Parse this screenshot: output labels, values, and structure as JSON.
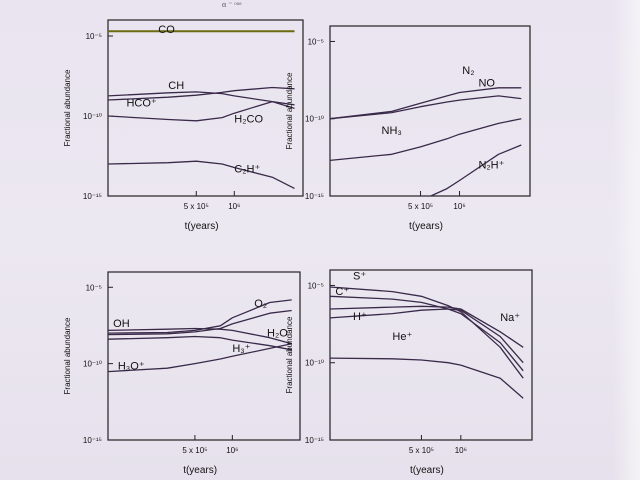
{
  "page": {
    "top_fragment": "α ⁻ ᵒᵘᵉ"
  },
  "chart_data": [
    {
      "type": "line",
      "xlabel": "t(years)",
      "ylabel": "Fractional abundance",
      "x_scale": "log",
      "y_scale": "log",
      "xlim": [
        100000,
        3500000
      ],
      "ylim": [
        1e-15,
        0.0001
      ],
      "yticks": [
        {
          "value": 1e-05,
          "label": "10⁻⁵"
        },
        {
          "value": 1e-10,
          "label": "10⁻¹⁰"
        },
        {
          "value": 1e-15,
          "label": "10⁻¹⁵"
        }
      ],
      "xticks": [
        {
          "value": 500000,
          "label": "5 x 10⁵"
        },
        {
          "value": 1000000,
          "label": "10⁶"
        }
      ],
      "series": [
        {
          "name": "CO",
          "x": [
            100000,
            500000,
            1000000,
            3000000
          ],
          "y": [
            2e-05,
            2e-05,
            2e-05,
            2e-05
          ]
        },
        {
          "name": "CH",
          "x": [
            100000,
            300000,
            500000,
            800000,
            1000000,
            2000000,
            3000000
          ],
          "y": [
            1.8e-09,
            2.8e-09,
            3.2e-09,
            2.5e-09,
            1.8e-09,
            8e-10,
            3e-10
          ]
        },
        {
          "name": "HCO⁺",
          "x": [
            100000,
            300000,
            500000,
            800000,
            1000000,
            2000000,
            3000000
          ],
          "y": [
            1e-09,
            1.5e-09,
            2e-09,
            3e-09,
            3.8e-09,
            6e-09,
            5e-09
          ]
        },
        {
          "name": "H₂CO",
          "x": [
            100000,
            300000,
            500000,
            800000,
            1000000,
            2000000,
            3000000
          ],
          "y": [
            1e-10,
            6e-11,
            5e-11,
            8e-11,
            1.5e-10,
            8e-10,
            5e-10
          ]
        },
        {
          "name": "C₂H⁺",
          "x": [
            100000,
            300000,
            500000,
            800000,
            1000000,
            2000000,
            3000000
          ],
          "y": [
            1e-13,
            1.2e-13,
            1.5e-13,
            1e-13,
            6e-14,
            1.5e-14,
            3e-15
          ]
        }
      ]
    },
    {
      "type": "line",
      "xlabel": "t(years)",
      "ylabel": "Fractional abundance",
      "x_scale": "log",
      "y_scale": "log",
      "xlim": [
        100000,
        3500000
      ],
      "ylim": [
        1e-15,
        0.0001
      ],
      "yticks": [
        {
          "value": 1e-05,
          "label": "10⁻⁵"
        },
        {
          "value": 1e-10,
          "label": "10⁻¹⁰"
        },
        {
          "value": 1e-15,
          "label": "10⁻¹⁵"
        }
      ],
      "xticks": [
        {
          "value": 500000,
          "label": "5 x 10⁵"
        },
        {
          "value": 1000000,
          "label": "10⁶"
        }
      ],
      "series": [
        {
          "name": "N₂",
          "x": [
            100000,
            300000,
            500000,
            800000,
            1000000,
            2000000,
            3000000
          ],
          "y": [
            1e-10,
            3e-10,
            1e-09,
            3e-09,
            5e-09,
            1e-08,
            1e-08
          ]
        },
        {
          "name": "NO",
          "x": [
            100000,
            300000,
            500000,
            800000,
            1000000,
            2000000,
            3000000
          ],
          "y": [
            1e-10,
            2.5e-10,
            6e-10,
            1.2e-09,
            1.6e-09,
            3e-09,
            2e-09
          ]
        },
        {
          "name": "NH₃",
          "x": [
            100000,
            300000,
            500000,
            800000,
            1000000,
            2000000,
            3000000
          ],
          "y": [
            2e-13,
            5e-13,
            1.5e-12,
            5e-12,
            1e-11,
            5e-11,
            1e-10
          ]
        },
        {
          "name": "N₂H⁺",
          "x": [
            600000,
            800000,
            1000000,
            2000000,
            3000000
          ],
          "y": [
            1e-15,
            3e-15,
            1e-14,
            5e-13,
            2e-12
          ]
        }
      ]
    },
    {
      "type": "line",
      "xlabel": "t(years)",
      "ylabel": "Fractional abundance",
      "x_scale": "log",
      "y_scale": "log",
      "xlim": [
        100000,
        3500000
      ],
      "ylim": [
        1e-15,
        0.0001
      ],
      "yticks": [
        {
          "value": 1e-05,
          "label": "10⁻⁵"
        },
        {
          "value": 1e-10,
          "label": "10⁻¹⁰"
        },
        {
          "value": 1e-15,
          "label": "10⁻¹⁵"
        }
      ],
      "xticks": [
        {
          "value": 500000,
          "label": "5 x 10⁵"
        },
        {
          "value": 1000000,
          "label": "10⁶"
        }
      ],
      "series": [
        {
          "name": "O₂",
          "x": [
            100000,
            300000,
            500000,
            800000,
            1000000,
            2000000,
            3000000
          ],
          "y": [
            1e-08,
            1.1e-08,
            1.5e-08,
            3e-08,
            1e-07,
            1e-06,
            1.5e-06
          ]
        },
        {
          "name": "H₂O",
          "x": [
            100000,
            300000,
            500000,
            800000,
            1000000,
            2000000,
            3000000
          ],
          "y": [
            8e-09,
            9e-09,
            1.2e-08,
            2e-08,
            4e-08,
            2e-07,
            3e-07
          ]
        },
        {
          "name": "OH",
          "x": [
            100000,
            300000,
            500000,
            800000,
            1000000,
            2000000,
            3000000
          ],
          "y": [
            1.5e-08,
            1.8e-08,
            2e-08,
            1.8e-08,
            1.5e-08,
            5e-09,
            2e-09
          ]
        },
        {
          "name": "H₃⁺",
          "x": [
            100000,
            300000,
            500000,
            800000,
            1000000,
            2000000,
            3000000
          ],
          "y": [
            4e-09,
            5e-09,
            6e-09,
            5e-09,
            3.5e-09,
            1.5e-09,
            8e-10
          ]
        },
        {
          "name": "H₃O⁺",
          "x": [
            100000,
            300000,
            500000,
            800000,
            1000000,
            2000000,
            3000000
          ],
          "y": [
            3e-11,
            5e-11,
            1e-10,
            2e-10,
            3e-10,
            1e-09,
            2e-09
          ]
        }
      ]
    },
    {
      "type": "line",
      "xlabel": "t(years)",
      "ylabel": "Fractional abundance",
      "x_scale": "log",
      "y_scale": "log",
      "xlim": [
        100000,
        3500000
      ],
      "ylim": [
        1e-15,
        0.0001
      ],
      "yticks": [
        {
          "value": 1e-05,
          "label": "10⁻⁵"
        },
        {
          "value": 1e-10,
          "label": "10⁻¹⁰"
        },
        {
          "value": 1e-15,
          "label": "10⁻¹⁵"
        }
      ],
      "xticks": [
        {
          "value": 500000,
          "label": "5 x 10⁵"
        },
        {
          "value": 1000000,
          "label": "10⁶"
        }
      ],
      "series": [
        {
          "name": "S⁺",
          "x": [
            100000,
            300000,
            500000,
            800000,
            1000000,
            2000000,
            3000000
          ],
          "y": [
            8e-06,
            4e-06,
            2e-06,
            5e-07,
            2e-07,
            1e-09,
            1e-11
          ]
        },
        {
          "name": "C⁺",
          "x": [
            100000,
            300000,
            500000,
            800000,
            1000000,
            2000000,
            3000000
          ],
          "y": [
            2e-06,
            1.3e-06,
            8e-07,
            3e-07,
            1.5e-07,
            2e-09,
            3e-11
          ]
        },
        {
          "name": "Na⁺",
          "x": [
            100000,
            300000,
            500000,
            800000,
            1000000,
            2000000,
            3000000
          ],
          "y": [
            3e-07,
            4e-07,
            4.5e-07,
            4e-07,
            3e-07,
            1e-08,
            1e-09
          ]
        },
        {
          "name": "H⁺",
          "x": [
            100000,
            300000,
            500000,
            800000,
            1000000,
            2000000,
            3000000
          ],
          "y": [
            8e-08,
            1.5e-07,
            2.5e-07,
            3e-07,
            2.5e-07,
            5e-09,
            1e-10
          ]
        },
        {
          "name": "He⁺",
          "x": [
            100000,
            300000,
            500000,
            800000,
            1000000,
            2000000,
            3000000
          ],
          "y": [
            2e-10,
            1.8e-10,
            1.5e-10,
            1e-10,
            7e-11,
            1e-11,
            5e-13
          ]
        }
      ]
    }
  ],
  "labels": [
    [
      {
        "text": "CO",
        "x": 250000,
        "y": 1.5e-05
      },
      {
        "text": "CH",
        "x": 300000,
        "y": 5e-09
      },
      {
        "text": "HCO⁺",
        "x": 140000,
        "y": 4e-10
      },
      {
        "text": "H₂CO",
        "x": 1000000,
        "y": 4e-11
      },
      {
        "text": "C₂H⁺",
        "x": 1000000,
        "y": 3e-14
      }
    ],
    [
      {
        "text": "N₂",
        "x": 1050000,
        "y": 8e-08
      },
      {
        "text": "NO",
        "x": 1400000,
        "y": 1.2e-08
      },
      {
        "text": "NH₃",
        "x": 250000,
        "y": 1e-11
      },
      {
        "text": "N₂H⁺",
        "x": 1400000,
        "y": 6e-14
      }
    ],
    [
      {
        "text": "O₂",
        "x": 1500000,
        "y": 5e-07
      },
      {
        "text": "H₂O",
        "x": 1900000,
        "y": 6e-09
      },
      {
        "text": "OH",
        "x": 110000,
        "y": 2.5e-08
      },
      {
        "text": "H₃⁺",
        "x": 1000000,
        "y": 6e-10
      },
      {
        "text": "H₃O⁺",
        "x": 120000,
        "y": 4e-11
      }
    ],
    [
      {
        "text": "S⁺",
        "x": 150000,
        "y": 2.5e-05
      },
      {
        "text": "C⁺",
        "x": 110000,
        "y": 2.5e-06
      },
      {
        "text": "H⁺",
        "x": 150000,
        "y": 6e-08
      },
      {
        "text": "He⁺",
        "x": 300000,
        "y": 3e-09
      },
      {
        "text": "Na⁺",
        "x": 2000000,
        "y": 5e-08
      }
    ]
  ]
}
